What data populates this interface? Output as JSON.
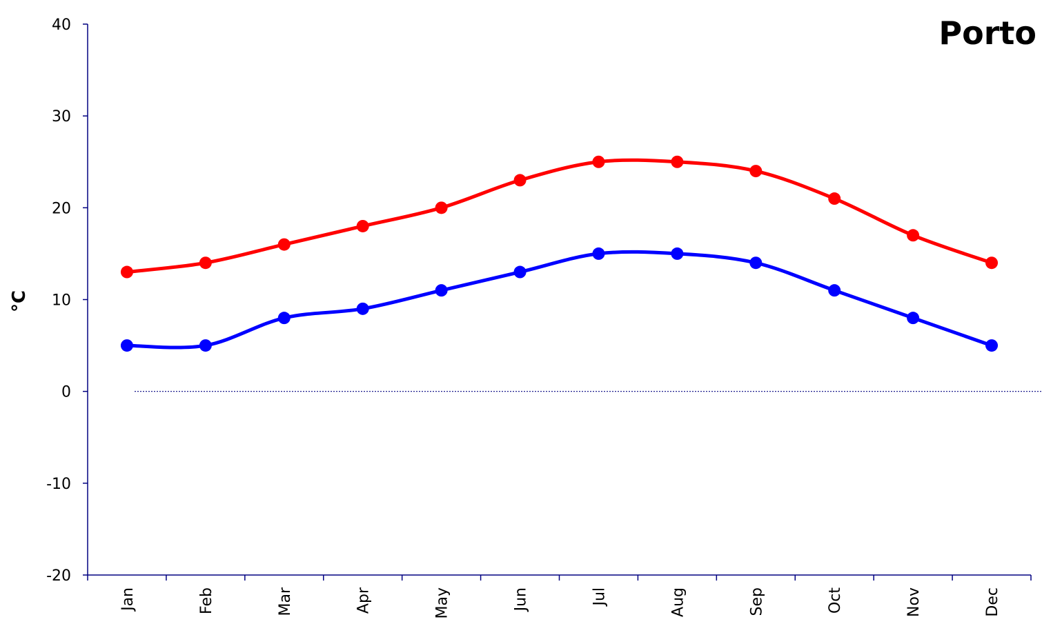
{
  "chart_data": {
    "type": "line",
    "title": "Porto",
    "y_label": "°C",
    "categories": [
      "Jan",
      "Feb",
      "Mar",
      "Apr",
      "May",
      "Jun",
      "Jul",
      "Aug",
      "Sep",
      "Oct",
      "Nov",
      "Dec"
    ],
    "series": [
      {
        "color": "#ff0000",
        "values": [
          13,
          14,
          16,
          18,
          20,
          23,
          25,
          25,
          24,
          21,
          17,
          14
        ]
      },
      {
        "color": "#0000ff",
        "values": [
          5,
          5,
          8,
          9,
          11,
          13,
          15,
          15,
          14,
          11,
          8,
          5
        ]
      }
    ],
    "ylim": [
      -20,
      40
    ],
    "yticks": [
      -20,
      -10,
      0,
      10,
      20,
      30,
      40
    ],
    "smooth": true
  }
}
